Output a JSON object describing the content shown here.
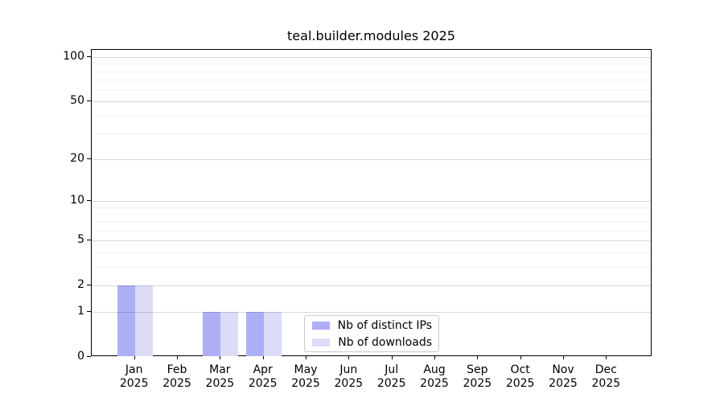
{
  "chart_data": {
    "type": "bar",
    "title": "teal.builder.modules 2025",
    "categories": [
      "Jan",
      "Feb",
      "Mar",
      "Apr",
      "May",
      "Jun",
      "Jul",
      "Aug",
      "Sep",
      "Oct",
      "Nov",
      "Dec"
    ],
    "year": "2025",
    "series": [
      {
        "name": "Nb of distinct IPs",
        "color": "#aeaef7",
        "values": [
          2,
          0,
          1,
          1,
          0,
          0,
          0,
          0,
          0,
          0,
          0,
          0
        ]
      },
      {
        "name": "Nb of downloads",
        "color": "#dcdcf8",
        "values": [
          2,
          0,
          1,
          1,
          0,
          0,
          0,
          0,
          0,
          0,
          0,
          0
        ]
      }
    ],
    "yticks": [
      0,
      1,
      2,
      5,
      10,
      20,
      50,
      100
    ],
    "minor_yticks": [
      3,
      4,
      6,
      7,
      8,
      9,
      30,
      40,
      60,
      70,
      80,
      90
    ],
    "scale": "log1p",
    "ylim": [
      0,
      100
    ],
    "xlabel": "",
    "ylabel": "",
    "grid": "horizontal",
    "legend_position": "inside-bottom-center"
  },
  "colors": {
    "background": "#ffffff",
    "spine": "#000000",
    "grid_major": "#d9d9d9",
    "grid_minor": "#f2f2f2",
    "legend_border": "#cccccc",
    "text": "#000000"
  }
}
